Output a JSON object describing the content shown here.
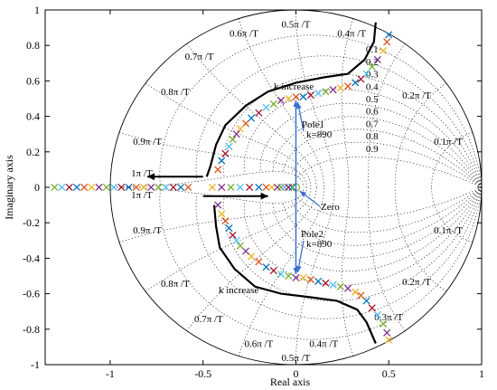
{
  "chart_data": {
    "type": "scatter",
    "title": "",
    "xlabel": "Real axis",
    "ylabel": "Imaginary axis",
    "xlim": [
      -1.35,
      1.0
    ],
    "ylim": [
      -1.0,
      1.0
    ],
    "x_ticks": [
      -1,
      -0.5,
      0,
      0.5,
      1
    ],
    "x_tick_labels": [
      "-1",
      "-0.5",
      "0",
      "0.5",
      "1"
    ],
    "y_ticks": [
      -1,
      -0.8,
      -0.6,
      -0.4,
      -0.2,
      0,
      0.2,
      0.4,
      0.6,
      0.8,
      1
    ],
    "y_tick_labels": [
      "-1",
      "-0.8",
      "-0.6",
      "-0.4",
      "-0.2",
      "0",
      "0.2",
      "0.4",
      "0.6",
      "0.8",
      "1"
    ],
    "grid": "z-plane damping and natural frequency grid",
    "unit_circle": true,
    "frequency_labels_top": [
      "0.5π /T",
      "0.4π /T",
      "0.6π /T",
      "0.7π /T",
      "0.2π /T",
      "0.8π /T",
      "0.9π /T",
      "0.1π /T",
      "1π /T"
    ],
    "frequency_labels_bottom": [
      "1π /T",
      "0.9π /T",
      "0.1π /T",
      "0.8π /T",
      "0.2π /T",
      "0.7π /T",
      "0.3π /T",
      "0.6π /T",
      "0.4π /T",
      "0.5π /T"
    ],
    "damping_labels": [
      "0.1",
      "0.2",
      "0.3",
      "0.4",
      "0.5",
      "0.6",
      "0.7",
      "0.8",
      "0.9"
    ],
    "annotations": {
      "k_increase_top": "k increase",
      "k_increase_bottom": "k increase",
      "pole1": "Pole1",
      "pole1_k": "k=890",
      "pole2": "Pole2",
      "pole2_k": "k=890",
      "zero": "Zero"
    },
    "marker_colors": [
      "#0072BD",
      "#D95319",
      "#EDB120",
      "#7E2F8E",
      "#77AC30",
      "#4DBEEE",
      "#A2142F"
    ],
    "annotation_color": "#3a6fd0",
    "series": [
      {
        "marker": "x",
        "points": [
          [
            0.5,
            0.86
          ],
          [
            0.49,
            0.82
          ],
          [
            0.47,
            0.77
          ],
          [
            0.44,
            0.72
          ],
          [
            0.41,
            0.68
          ],
          [
            0.38,
            0.64
          ],
          [
            0.35,
            0.61
          ],
          [
            0.32,
            0.59
          ],
          [
            0.28,
            0.57
          ],
          [
            0.24,
            0.56
          ],
          [
            0.2,
            0.55
          ],
          [
            0.16,
            0.54
          ],
          [
            0.12,
            0.53
          ],
          [
            0.08,
            0.52
          ],
          [
            0.04,
            0.51
          ],
          [
            0.0,
            0.51
          ],
          [
            -0.04,
            0.5
          ],
          [
            -0.08,
            0.49
          ],
          [
            -0.12,
            0.47
          ],
          [
            -0.16,
            0.45
          ],
          [
            -0.2,
            0.42
          ],
          [
            -0.24,
            0.39
          ],
          [
            -0.27,
            0.36
          ],
          [
            -0.3,
            0.33
          ],
          [
            -0.32,
            0.3
          ],
          [
            -0.34,
            0.27
          ],
          [
            -0.36,
            0.23
          ],
          [
            -0.38,
            0.19
          ],
          [
            -0.4,
            0.15
          ],
          [
            -0.42,
            0.1
          ]
        ]
      },
      {
        "marker": "x",
        "points": [
          [
            0.5,
            -0.86
          ],
          [
            0.49,
            -0.82
          ],
          [
            0.47,
            -0.77
          ],
          [
            0.44,
            -0.72
          ],
          [
            0.41,
            -0.68
          ],
          [
            0.38,
            -0.64
          ],
          [
            0.35,
            -0.61
          ],
          [
            0.32,
            -0.59
          ],
          [
            0.28,
            -0.57
          ],
          [
            0.24,
            -0.56
          ],
          [
            0.2,
            -0.55
          ],
          [
            0.16,
            -0.54
          ],
          [
            0.12,
            -0.53
          ],
          [
            0.08,
            -0.52
          ],
          [
            0.04,
            -0.51
          ],
          [
            0.0,
            -0.51
          ],
          [
            -0.04,
            -0.5
          ],
          [
            -0.08,
            -0.49
          ],
          [
            -0.12,
            -0.47
          ],
          [
            -0.16,
            -0.45
          ],
          [
            -0.2,
            -0.42
          ],
          [
            -0.24,
            -0.39
          ],
          [
            -0.27,
            -0.36
          ],
          [
            -0.3,
            -0.33
          ],
          [
            -0.32,
            -0.3
          ],
          [
            -0.34,
            -0.27
          ],
          [
            -0.36,
            -0.23
          ],
          [
            -0.38,
            -0.19
          ],
          [
            -0.4,
            -0.15
          ],
          [
            -0.42,
            -0.1
          ]
        ]
      },
      {
        "marker": "x",
        "points": [
          [
            -1.3,
            0
          ],
          [
            -1.26,
            0
          ],
          [
            -1.22,
            0
          ],
          [
            -1.18,
            0
          ],
          [
            -1.14,
            0
          ],
          [
            -1.1,
            0
          ],
          [
            -1.06,
            0
          ],
          [
            -1.02,
            0
          ],
          [
            -0.98,
            0
          ],
          [
            -0.94,
            0
          ],
          [
            -0.9,
            0
          ],
          [
            -0.86,
            0
          ],
          [
            -0.82,
            0
          ],
          [
            -0.78,
            0
          ],
          [
            -0.74,
            0
          ],
          [
            -0.7,
            0
          ],
          [
            -0.66,
            0
          ],
          [
            -0.62,
            0
          ],
          [
            -0.58,
            0
          ],
          [
            -0.45,
            0
          ],
          [
            -0.4,
            0
          ],
          [
            -0.35,
            0
          ],
          [
            -0.3,
            0
          ],
          [
            -0.25,
            0
          ],
          [
            -0.2,
            0
          ],
          [
            -0.16,
            0
          ],
          [
            -0.13,
            0
          ],
          [
            -0.1,
            0
          ],
          [
            -0.08,
            0
          ],
          [
            -0.06,
            0
          ],
          [
            -0.04,
            0
          ],
          [
            -0.02,
            0
          ]
        ]
      }
    ],
    "zero": [
      0.0,
      0.0
    ]
  }
}
